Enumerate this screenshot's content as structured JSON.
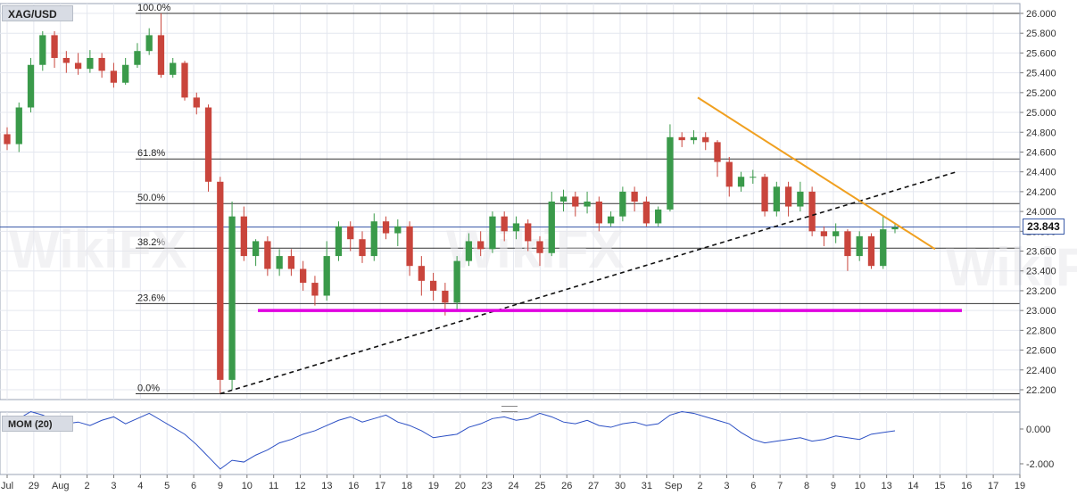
{
  "symbol": "XAG/USD",
  "last_price": "23.843",
  "indicator": {
    "label": "MOM (20)",
    "ticks": [
      "0.000",
      "-2.000"
    ]
  },
  "watermark": "WikiFX",
  "price_axis": {
    "ticks": [
      "26.000",
      "25.800",
      "25.600",
      "25.400",
      "25.200",
      "25.000",
      "24.800",
      "24.600",
      "24.400",
      "24.200",
      "24.000",
      "23.800",
      "23.600",
      "23.400",
      "23.200",
      "23.000",
      "22.800",
      "22.600",
      "22.400",
      "22.200"
    ]
  },
  "time_axis": {
    "labels": [
      "Jul",
      "29",
      "Aug",
      "2",
      "3",
      "4",
      "5",
      "6",
      "9",
      "10",
      "11",
      "12",
      "13",
      "16",
      "17",
      "18",
      "19",
      "20",
      "23",
      "24",
      "25",
      "26",
      "27",
      "30",
      "31",
      "Sep",
      "2",
      "3",
      "6",
      "7",
      "8",
      "9",
      "10",
      "13",
      "14",
      "15",
      "16",
      "17",
      "19"
    ]
  },
  "fibonacci": [
    {
      "label": "100.0%",
      "price": 26.0
    },
    {
      "label": "61.8%",
      "price": 24.53
    },
    {
      "label": "50.0%",
      "price": 24.08
    },
    {
      "label": "38.2%",
      "price": 23.63
    },
    {
      "label": "23.6%",
      "price": 23.07
    },
    {
      "label": "0.0%",
      "price": 22.16
    }
  ],
  "colors": {
    "bull": "#3a9a4a",
    "bear": "#c9453c",
    "support": "#e000e0",
    "downtrend": "#f0a020",
    "uptrend": "#111111",
    "momentum": "#2b4fc4",
    "grid": "#e4e7ef"
  },
  "chart_data": {
    "type": "candlestick",
    "symbol": "XAG/USD",
    "price_range": [
      22.1,
      26.1
    ],
    "support_level": 23.0,
    "last_price": 23.843,
    "fib_levels": {
      "100.0%": 26.0,
      "61.8%": 24.53,
      "50.0%": 24.08,
      "38.2%": 23.63,
      "23.6%": 23.07,
      "0.0%": 22.16
    },
    "candles": [
      [
        24.78,
        24.68,
        24.85,
        24.62
      ],
      [
        24.68,
        25.05,
        25.1,
        24.6
      ],
      [
        25.05,
        25.48,
        25.55,
        25.0
      ],
      [
        25.48,
        25.78,
        25.82,
        25.42
      ],
      [
        25.78,
        25.55,
        25.82,
        25.45
      ],
      [
        25.55,
        25.5,
        25.62,
        25.4
      ],
      [
        25.5,
        25.44,
        25.6,
        25.38
      ],
      [
        25.44,
        25.55,
        25.63,
        25.4
      ],
      [
        25.55,
        25.42,
        25.6,
        25.35
      ],
      [
        25.42,
        25.3,
        25.5,
        25.25
      ],
      [
        25.3,
        25.48,
        25.55,
        25.28
      ],
      [
        25.48,
        25.62,
        25.7,
        25.45
      ],
      [
        25.62,
        25.78,
        25.85,
        25.58
      ],
      [
        25.78,
        25.38,
        26.0,
        25.35
      ],
      [
        25.38,
        25.5,
        25.55,
        25.35
      ],
      [
        25.5,
        25.15,
        25.52,
        25.12
      ],
      [
        25.15,
        25.05,
        25.2,
        24.98
      ],
      [
        25.05,
        24.3,
        25.08,
        24.2
      ],
      [
        24.3,
        22.3,
        24.35,
        22.16
      ],
      [
        22.3,
        23.95,
        24.1,
        22.2
      ],
      [
        23.95,
        23.55,
        24.05,
        23.5
      ],
      [
        23.55,
        23.7,
        23.72,
        23.45
      ],
      [
        23.7,
        23.42,
        23.75,
        23.35
      ],
      [
        23.42,
        23.55,
        23.62,
        23.35
      ],
      [
        23.55,
        23.42,
        23.62,
        23.35
      ],
      [
        23.42,
        23.28,
        23.5,
        23.2
      ],
      [
        23.28,
        23.15,
        23.35,
        23.05
      ],
      [
        23.15,
        23.55,
        23.7,
        23.1
      ],
      [
        23.55,
        23.85,
        23.9,
        23.5
      ],
      [
        23.85,
        23.72,
        23.9,
        23.6
      ],
      [
        23.72,
        23.55,
        23.8,
        23.48
      ],
      [
        23.55,
        23.9,
        23.98,
        23.5
      ],
      [
        23.9,
        23.78,
        23.95,
        23.72
      ],
      [
        23.78,
        23.85,
        23.92,
        23.65
      ],
      [
        23.85,
        23.45,
        23.9,
        23.35
      ],
      [
        23.45,
        23.3,
        23.55,
        23.15
      ],
      [
        23.3,
        23.2,
        23.38,
        23.1
      ],
      [
        23.2,
        23.08,
        23.28,
        22.95
      ],
      [
        23.08,
        23.5,
        23.55,
        23.0
      ],
      [
        23.5,
        23.7,
        23.78,
        23.45
      ],
      [
        23.7,
        23.62,
        23.8,
        23.55
      ],
      [
        23.62,
        23.95,
        24.0,
        23.58
      ],
      [
        23.95,
        23.8,
        24.0,
        23.7
      ],
      [
        23.8,
        23.88,
        23.95,
        23.72
      ],
      [
        23.88,
        23.7,
        23.92,
        23.6
      ],
      [
        23.7,
        23.58,
        23.75,
        23.45
      ],
      [
        23.58,
        24.1,
        24.2,
        23.55
      ],
      [
        24.1,
        24.15,
        24.22,
        24.0
      ],
      [
        24.15,
        24.05,
        24.2,
        23.95
      ],
      [
        24.05,
        24.1,
        24.2,
        23.98
      ],
      [
        24.1,
        23.88,
        24.15,
        23.8
      ],
      [
        23.88,
        23.95,
        24.0,
        23.85
      ],
      [
        23.95,
        24.2,
        24.25,
        23.9
      ],
      [
        24.2,
        24.1,
        24.25,
        24.0
      ],
      [
        24.1,
        23.88,
        24.15,
        23.85
      ],
      [
        23.88,
        24.02,
        24.05,
        23.85
      ],
      [
        24.02,
        24.75,
        24.88,
        24.0
      ],
      [
        24.75,
        24.72,
        24.8,
        24.65
      ],
      [
        24.72,
        24.75,
        24.82,
        24.68
      ],
      [
        24.75,
        24.7,
        24.8,
        24.62
      ],
      [
        24.7,
        24.5,
        24.72,
        24.35
      ],
      [
        24.5,
        24.25,
        24.55,
        24.15
      ],
      [
        24.25,
        24.35,
        24.4,
        24.2
      ],
      [
        24.35,
        24.35,
        24.42,
        24.28
      ],
      [
        24.35,
        24.0,
        24.38,
        23.95
      ],
      [
        24.0,
        24.25,
        24.3,
        23.95
      ],
      [
        24.25,
        24.05,
        24.3,
        23.95
      ],
      [
        24.05,
        24.2,
        24.3,
        24.0
      ],
      [
        24.2,
        23.8,
        24.25,
        23.75
      ],
      [
        23.8,
        23.75,
        23.85,
        23.65
      ],
      [
        23.75,
        23.8,
        23.88,
        23.68
      ],
      [
        23.8,
        23.55,
        23.82,
        23.4
      ],
      [
        23.55,
        23.75,
        23.8,
        23.5
      ],
      [
        23.75,
        23.45,
        23.78,
        23.42
      ],
      [
        23.45,
        23.82,
        23.95,
        23.42
      ],
      [
        23.82,
        23.84,
        23.88,
        23.78
      ]
    ],
    "momentum": {
      "label": "MOM (20)",
      "ticks": [
        0.0,
        -2.0
      ],
      "values": [
        0.2,
        0.6,
        1.0,
        0.8,
        0.5,
        0.3,
        0.4,
        0.2,
        0.5,
        0.7,
        0.3,
        0.6,
        0.9,
        0.5,
        0.1,
        -0.3,
        -0.9,
        -1.6,
        -2.3,
        -1.8,
        -1.9,
        -1.5,
        -1.2,
        -0.8,
        -0.6,
        -0.3,
        -0.1,
        0.2,
        0.5,
        0.7,
        0.4,
        0.6,
        0.8,
        0.4,
        0.2,
        -0.1,
        -0.5,
        -0.4,
        -0.3,
        0.1,
        0.3,
        0.6,
        0.7,
        0.5,
        0.6,
        0.9,
        0.7,
        0.4,
        0.3,
        0.5,
        0.2,
        0.1,
        0.3,
        0.4,
        0.2,
        0.3,
        0.8,
        1.0,
        0.9,
        0.7,
        0.5,
        0.3,
        -0.2,
        -0.6,
        -0.8,
        -0.7,
        -0.6,
        -0.5,
        -0.7,
        -0.6,
        -0.4,
        -0.5,
        -0.6,
        -0.3,
        -0.2,
        -0.1
      ]
    }
  }
}
